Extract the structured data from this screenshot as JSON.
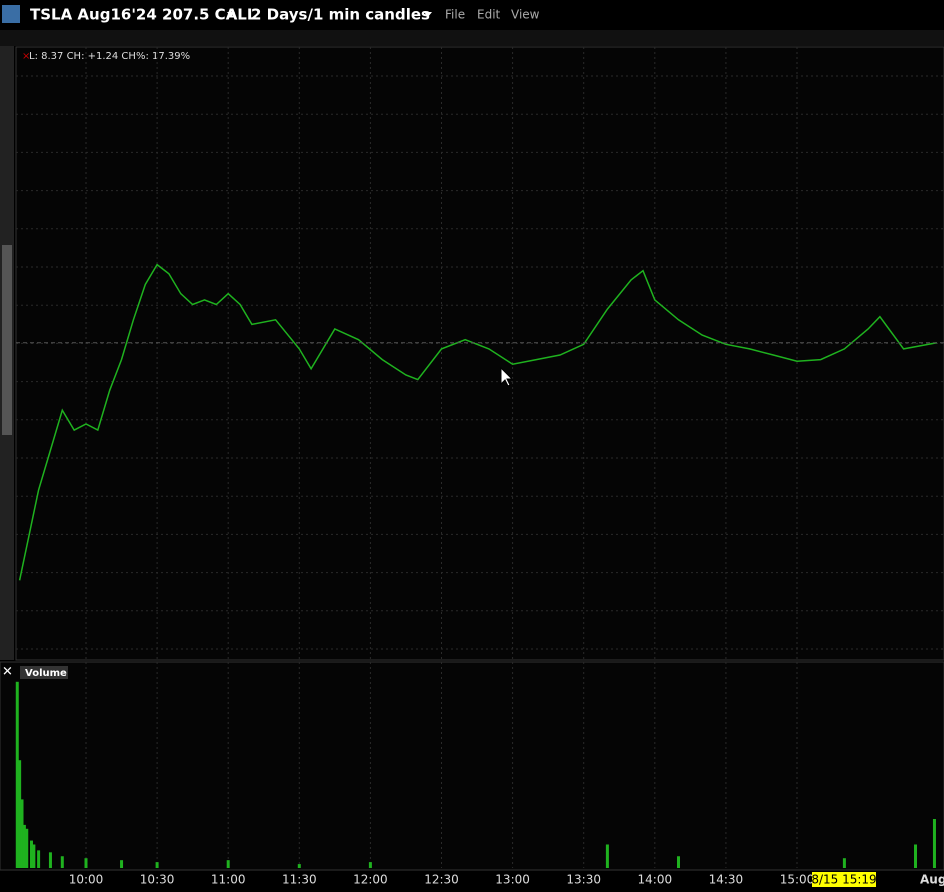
{
  "header": {
    "symbol": "TSLA Aug16'24 207.5 CALL",
    "timeframe": "2 Days/1 min candles",
    "menu": [
      "File",
      "Edit",
      "View"
    ]
  },
  "chart_data": [
    {
      "type": "line",
      "info": "L: 8.37 CH: +1.24 CH%: 17.39%",
      "color": "#1fb21f",
      "x": [
        "9:32",
        "9:40",
        "9:45",
        "9:50",
        "9:55",
        "10:00",
        "10:05",
        "10:10",
        "10:15",
        "10:20",
        "10:25",
        "10:30",
        "10:35",
        "10:40",
        "10:45",
        "10:50",
        "10:55",
        "11:00",
        "11:05",
        "11:10",
        "11:20",
        "11:30",
        "11:35",
        "11:45",
        "11:55",
        "12:05",
        "12:15",
        "12:20",
        "12:30",
        "12:40",
        "12:50",
        "13:00",
        "13:10",
        "13:20",
        "13:30",
        "13:40",
        "13:50",
        "13:55",
        "14:00",
        "14:10",
        "14:20",
        "14:30",
        "14:40",
        "14:50",
        "15:00",
        "15:10",
        "15:20",
        "15:30",
        "15:35",
        "15:45",
        "15:59"
      ],
      "values": [
        6.82,
        7.41,
        7.67,
        7.93,
        7.8,
        7.84,
        7.8,
        8.06,
        8.26,
        8.52,
        8.75,
        8.88,
        8.82,
        8.69,
        8.62,
        8.65,
        8.62,
        8.69,
        8.62,
        8.49,
        8.52,
        8.33,
        8.2,
        8.46,
        8.39,
        8.26,
        8.16,
        8.13,
        8.33,
        8.39,
        8.33,
        8.23,
        8.26,
        8.29,
        8.36,
        8.59,
        8.78,
        8.84,
        8.65,
        8.52,
        8.42,
        8.36,
        8.33,
        8.29,
        8.25,
        8.26,
        8.33,
        8.46,
        8.54,
        8.33,
        8.37
      ],
      "ylim": [
        6.3,
        10.3
      ],
      "xticks": [
        "10:00",
        "10:30",
        "11:00",
        "11:30",
        "12:00",
        "12:30",
        "13:00",
        "13:30",
        "14:00",
        "14:30",
        "15:00"
      ],
      "next_day_label": "Aug",
      "cursor_label": "8/15 15:19"
    },
    {
      "type": "bar",
      "title": "Volume",
      "color": "#1fb21f",
      "x": [
        "9:31",
        "9:32",
        "9:33",
        "9:34",
        "9:35",
        "9:37",
        "9:38",
        "9:40",
        "9:45",
        "9:50",
        "10:00",
        "10:15",
        "10:30",
        "11:00",
        "11:30",
        "12:00",
        "13:40",
        "14:10",
        "15:20",
        "15:50",
        "15:58"
      ],
      "values": [
        95,
        55,
        35,
        22,
        20,
        14,
        12,
        9,
        8,
        6,
        5,
        4,
        3,
        4,
        2,
        3,
        12,
        6,
        5,
        12,
        25
      ],
      "ylim": [
        0,
        100
      ]
    }
  ]
}
